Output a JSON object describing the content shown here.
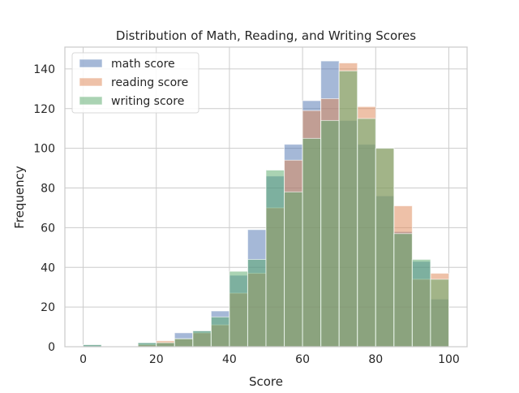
{
  "chart_data": {
    "type": "bar",
    "title": "Distribution of Math, Reading, and Writing Scores",
    "xlabel": "Score",
    "ylabel": "Frequency",
    "xlim": [
      -5,
      105
    ],
    "ylim": [
      0,
      151
    ],
    "xticks": [
      0,
      20,
      40,
      60,
      80,
      100
    ],
    "yticks": [
      0,
      20,
      40,
      60,
      80,
      100,
      120,
      140
    ],
    "grid": true,
    "legend_position": "upper left",
    "bin_edges": [
      0,
      5,
      10,
      15,
      20,
      25,
      30,
      35,
      40,
      45,
      50,
      55,
      60,
      65,
      70,
      75,
      80,
      85,
      90,
      95,
      100
    ],
    "series": [
      {
        "name": "math score",
        "color": "#4c72b0",
        "values": [
          1,
          0,
          0,
          2,
          2,
          7,
          8,
          18,
          36,
          59,
          86,
          102,
          124,
          144,
          114,
          102,
          76,
          58,
          43,
          24
        ]
      },
      {
        "name": "reading score",
        "color": "#dd8452",
        "values": [
          0,
          0,
          0,
          1,
          3,
          4,
          7,
          11,
          27,
          37,
          70,
          94,
          119,
          125,
          143,
          121,
          100,
          71,
          34,
          37
        ]
      },
      {
        "name": "writing score",
        "color": "#55a868",
        "values": [
          1,
          0,
          0,
          2,
          2,
          4,
          8,
          15,
          38,
          44,
          89,
          78,
          105,
          114,
          139,
          115,
          100,
          57,
          44,
          34
        ]
      }
    ]
  }
}
